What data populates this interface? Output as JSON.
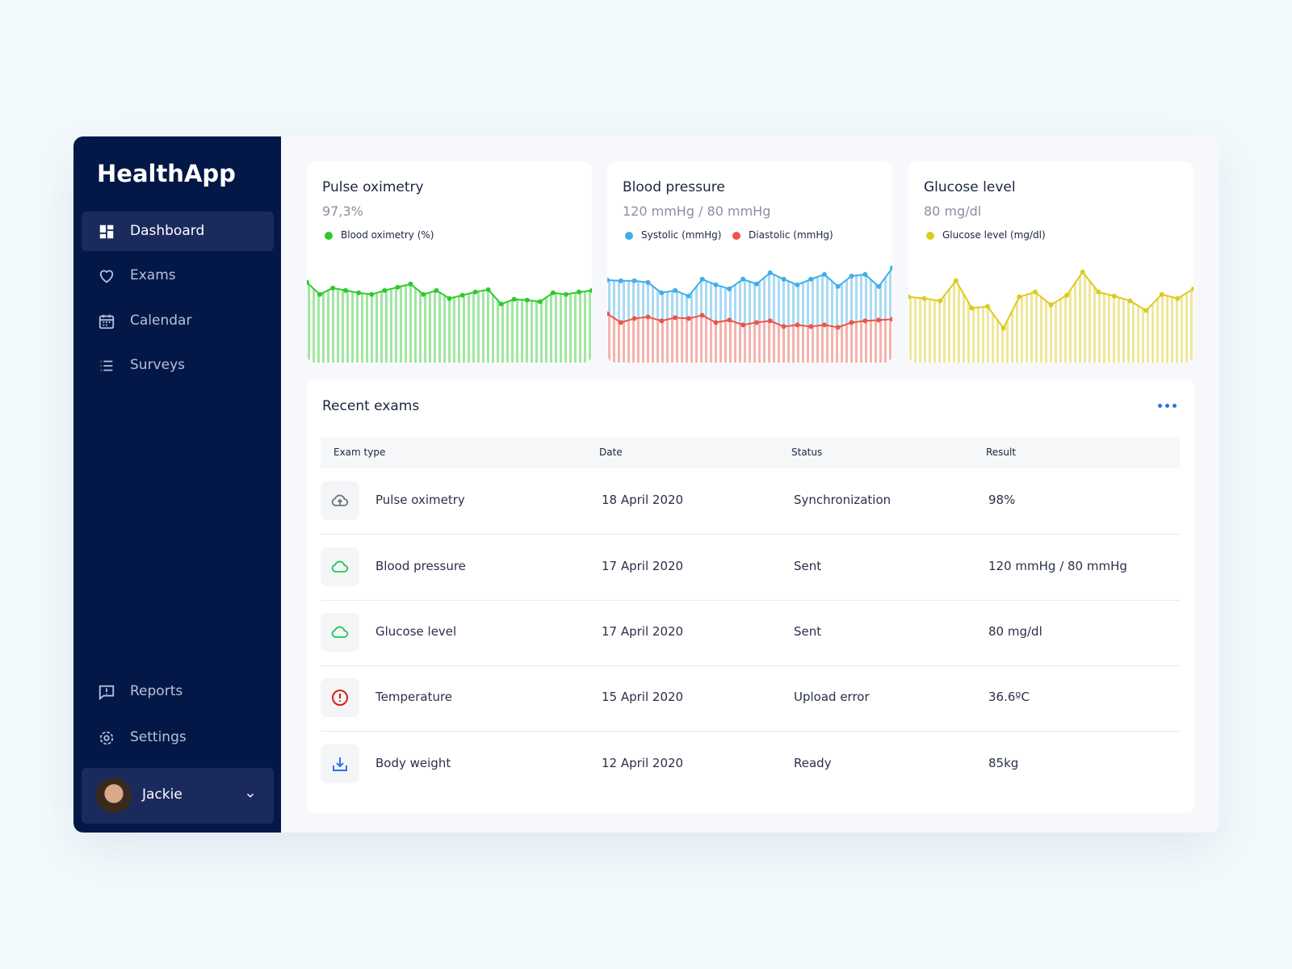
{
  "sidebar": {
    "brand": "HealthApp",
    "nav": [
      "Dashboard",
      "Exams",
      "Calendar",
      "Surveys"
    ],
    "nav_bottom": [
      "Reports",
      "Settings"
    ],
    "user": "Jackie"
  },
  "chart_data": [
    {
      "type": "line",
      "title": "Pulse oximetry",
      "subtitle": "97,3%",
      "ylim": [
        0,
        130
      ],
      "series": [
        {
          "name": "Blood oximetry (%)",
          "color": "#2ccb2c",
          "values": [
            100,
            85,
            93,
            90,
            87,
            85,
            90,
            94,
            98,
            85,
            90,
            80,
            84,
            88,
            91,
            73,
            79,
            78,
            76,
            87,
            85,
            88,
            90
          ]
        }
      ]
    },
    {
      "type": "line",
      "title": "Blood pressure",
      "subtitle": "120 mmHg / 80 mmHg",
      "ylim": [
        0,
        130
      ],
      "series": [
        {
          "name": "Systolic (mmHg)",
          "color": "#41aee8",
          "values": [
            103,
            102,
            102,
            100,
            87,
            90,
            83,
            104,
            97,
            92,
            104,
            98,
            112,
            104,
            97,
            104,
            110,
            95,
            108,
            110,
            95,
            118
          ]
        },
        {
          "name": "Diastolic (mmHg)",
          "color": "#ec5549",
          "values": [
            61,
            50,
            55,
            57,
            52,
            56,
            55,
            59,
            50,
            53,
            47,
            50,
            52,
            45,
            47,
            45,
            47,
            44,
            50,
            52,
            53,
            54
          ]
        }
      ]
    },
    {
      "type": "line",
      "title": "Glucose level",
      "subtitle": "80 mg/dl",
      "ylim": [
        0,
        130
      ],
      "series": [
        {
          "name": "Glucose level (mg/dl)",
          "color": "#dccb1e",
          "values": [
            82,
            80,
            77,
            102,
            68,
            70,
            43,
            82,
            88,
            72,
            84,
            113,
            88,
            83,
            77,
            65,
            85,
            80,
            92
          ]
        }
      ]
    }
  ],
  "recent_exams": {
    "title": "Recent exams",
    "columns": [
      "Exam type",
      "Date",
      "Status",
      "Result"
    ],
    "rows": [
      [
        "Pulse oximetry",
        "18 April 2020",
        "Synchronization",
        "98%"
      ],
      [
        "Blood pressure",
        "17 April 2020",
        "Sent",
        "120 mmHg / 80 mmHg"
      ],
      [
        "Glucose level",
        "17 April 2020",
        "Sent",
        "80 mg/dl"
      ],
      [
        "Temperature",
        "15 April 2020",
        "Upload error",
        "36.6ºC"
      ],
      [
        "Body weight",
        "12 April 2020",
        "Ready",
        "85kg"
      ]
    ]
  }
}
